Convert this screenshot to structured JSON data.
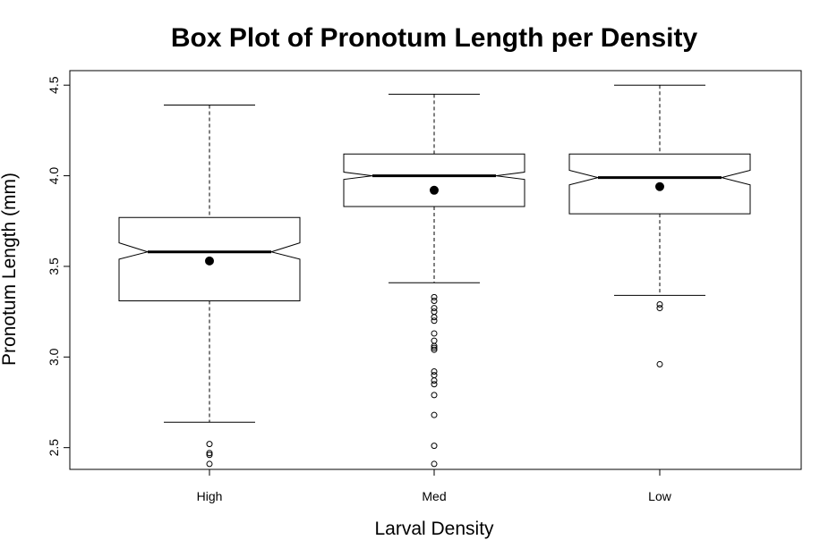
{
  "chart_data": {
    "type": "boxplot",
    "title": "Box Plot of Pronotum Length per Density",
    "xlabel": "Larval Density",
    "ylabel": "Pronotum Length (mm)",
    "categories": [
      "High",
      "Med",
      "Low"
    ],
    "ylim": [
      2.38,
      4.58
    ],
    "yticks": [
      2.5,
      3.0,
      3.5,
      4.0,
      4.5
    ],
    "ytick_labels": [
      "2.5",
      "3.0",
      "3.5",
      "4.0",
      "4.5"
    ],
    "notched": true,
    "grid": false,
    "legend": "none",
    "boxes": [
      {
        "category": "High",
        "whisker_low": 2.64,
        "q1": 3.31,
        "median": 3.58,
        "q3": 3.77,
        "whisker_high": 4.39,
        "notch_low": 3.54,
        "notch_high": 3.63,
        "mean": 3.53,
        "outliers": [
          2.52,
          2.47,
          2.46,
          2.41
        ]
      },
      {
        "category": "Med",
        "whisker_low": 3.41,
        "q1": 3.83,
        "median": 4.0,
        "q3": 4.12,
        "whisker_high": 4.45,
        "notch_low": 3.98,
        "notch_high": 4.02,
        "mean": 3.92,
        "outliers": [
          3.33,
          3.31,
          3.27,
          3.25,
          3.22,
          3.2,
          3.13,
          3.09,
          3.06,
          3.05,
          3.04,
          2.92,
          2.9,
          2.87,
          2.85,
          2.79,
          2.68,
          2.51,
          2.41
        ]
      },
      {
        "category": "Low",
        "whisker_low": 3.34,
        "q1": 3.79,
        "median": 3.99,
        "q3": 4.12,
        "whisker_high": 4.5,
        "notch_low": 3.95,
        "notch_high": 4.03,
        "mean": 3.94,
        "outliers": [
          3.29,
          3.27,
          2.96
        ]
      }
    ]
  }
}
